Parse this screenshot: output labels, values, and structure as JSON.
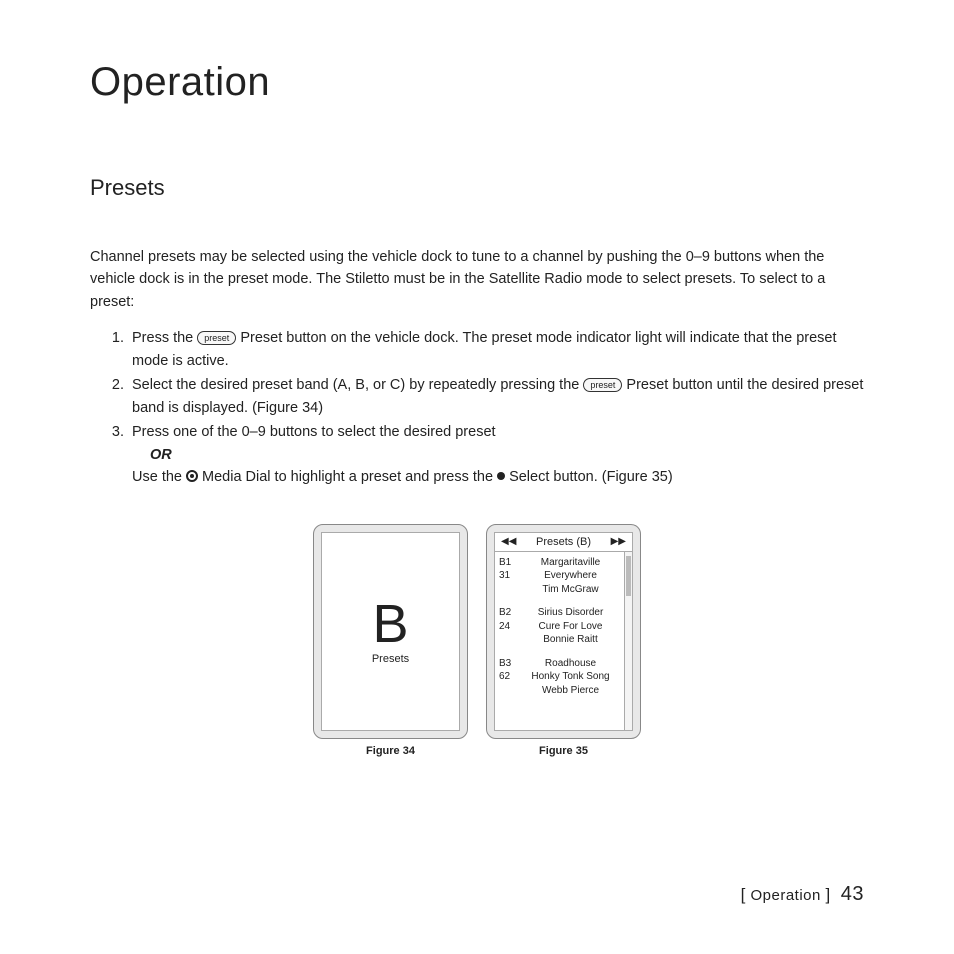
{
  "title": "Operation",
  "section": "Presets",
  "intro": "Channel presets may be selected using the vehicle dock to tune to a channel by pushing the 0–9 buttons when the vehicle dock is in the preset mode. The Stiletto must be in the Satellite Radio mode to select presets. To select to a preset:",
  "preset_button_label": "preset",
  "steps": {
    "s1a": "Press the ",
    "s1b": " Preset button on the vehicle dock. The preset mode indicator light will indicate that the preset mode is active.",
    "s2a": "Select the desired preset band (A, B, or C) by repeatedly pressing the ",
    "s2b": " Preset button until the desired preset band is displayed. (Figure 34)",
    "s3a": "Press one of the 0–9 buttons to select the desired preset",
    "or": "OR",
    "s3b_a": "Use the ",
    "s3b_b": " Media Dial to highlight a preset and press the ",
    "s3b_c": " Select button. (Figure 35)"
  },
  "figure34": {
    "letter": "B",
    "label": "Presets",
    "caption": "Figure 34"
  },
  "figure35": {
    "header": "Presets (B)",
    "caption": "Figure 35",
    "items": [
      {
        "id": "B1",
        "ch": "31",
        "l1": "Margaritaville",
        "l2": "Everywhere",
        "l3": "Tim McGraw"
      },
      {
        "id": "B2",
        "ch": "24",
        "l1": "Sirius  Disorder",
        "l2": "Cure For Love",
        "l3": "Bonnie Raitt"
      },
      {
        "id": "B3",
        "ch": "62",
        "l1": "Roadhouse",
        "l2": "Honky Tonk Song",
        "l3": "Webb Pierce"
      }
    ]
  },
  "footer": {
    "section": "Operation",
    "page": "43"
  }
}
